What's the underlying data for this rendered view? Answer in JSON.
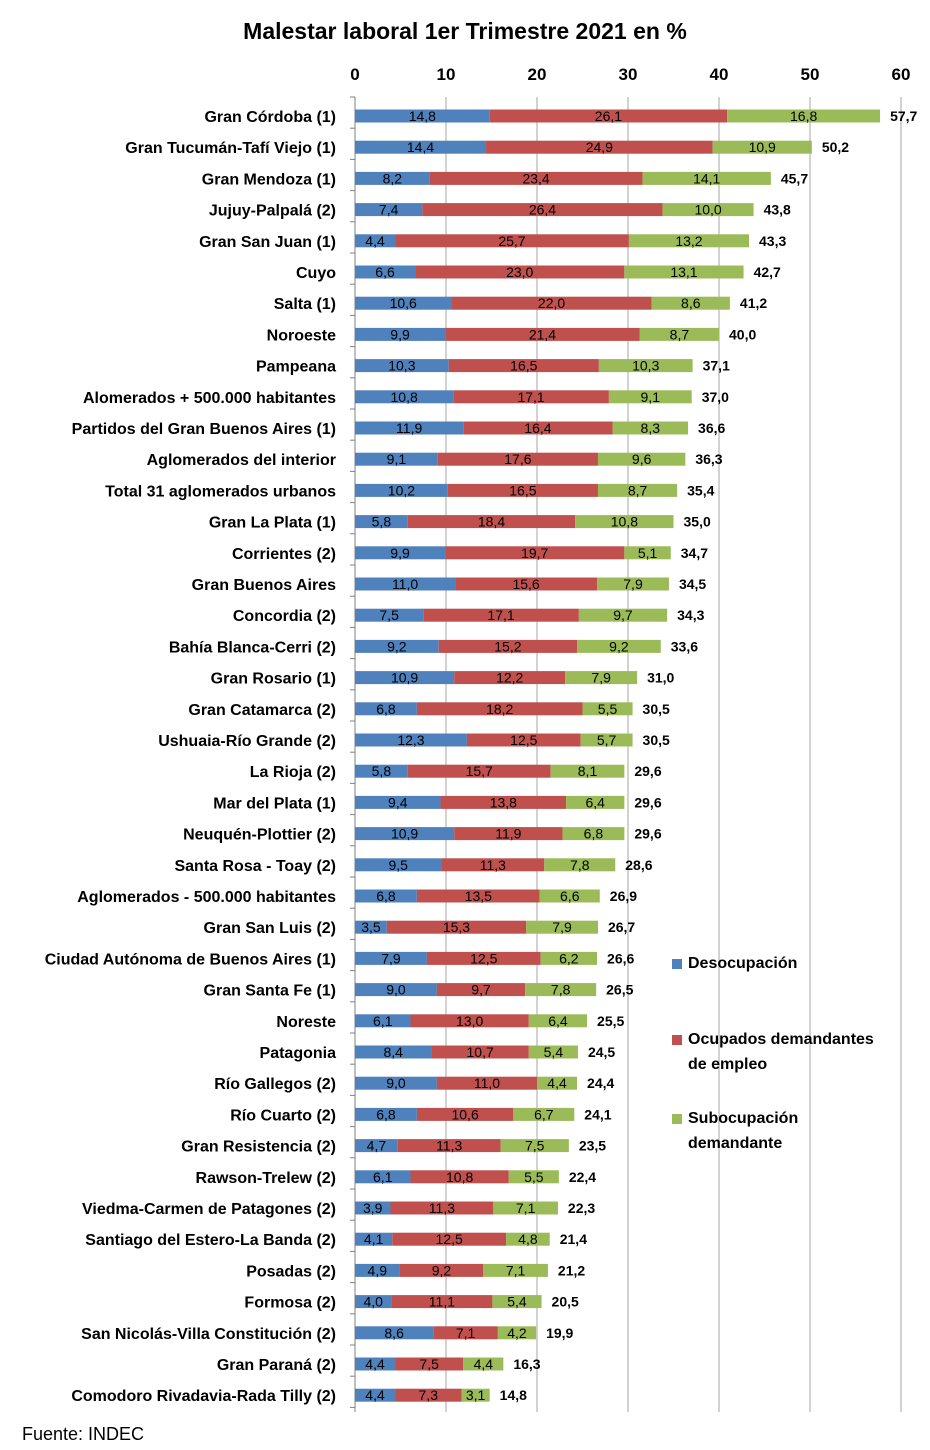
{
  "title": "Malestar laboral 1er Trimestre 2021 en %",
  "source": "Fuente: INDEC",
  "colors": {
    "desocupacion": "#4f81bd",
    "ocupados": "#c0504d",
    "subocupacion": "#9bbb59",
    "grid": "#a6a6a6"
  },
  "chart_data": {
    "type": "bar",
    "orientation": "horizontal",
    "stacked": true,
    "xlim": [
      0,
      60
    ],
    "xticks": [
      0,
      10,
      20,
      30,
      40,
      50,
      60
    ],
    "legend_position": "right",
    "categories": [
      "Gran Córdoba (1)",
      "Gran Tucumán-Tafí Viejo (1)",
      "Gran Mendoza  (1)",
      "Jujuy-Palpalá (2)",
      "Gran San Juan  (1)",
      "Cuyo",
      "Salta (1)",
      "Noroeste",
      "Pampeana",
      "Alomerados + 500.000 habitantes",
      "Partidos del Gran Buenos Aires (1)",
      "Aglomerados del interior",
      "Total 31 aglomerados urbanos",
      "Gran La Plata  (1)",
      "Corrientes (2)",
      "Gran Buenos Aires",
      "Concordia (2)",
      "Bahía Blanca-Cerri (2)",
      "Gran Rosario  (1)",
      "Gran Catamarca (2)",
      "Ushuaia-Río Grande (2)",
      "La Rioja (2)",
      "Mar del Plata (1)",
      "Neuquén-Plottier (2)",
      "Santa Rosa - Toay (2)",
      "Aglomerados - 500.000 habitantes",
      "Gran San Luis (2)",
      "Ciudad Autónoma de Buenos Aires (1)",
      "Gran Santa Fe (1)",
      "Noreste",
      "Patagonia",
      "Río Gallegos (2)",
      "Río Cuarto (2)",
      "Gran Resistencia  (2)",
      "Rawson-Trelew (2)",
      "Viedma-Carmen de Patagones (2)",
      "Santiago del Estero-La Banda (2)",
      "Posadas  (2)",
      "Formosa  (2)",
      "San Nicolás-Villa Constitución (2)",
      "Gran Paraná (2)",
      "Comodoro Rivadavia-Rada Tilly (2)"
    ],
    "series": [
      {
        "name": "Desocupación",
        "color": "#4f81bd",
        "values": [
          "14,8",
          "14,4",
          "8,2",
          "7,4",
          "4,4",
          "6,6",
          "10,6",
          "9,9",
          "10,3",
          "10,8",
          "11,9",
          "9,1",
          "10,2",
          "5,8",
          "9,9",
          "11,0",
          "7,5",
          "9,2",
          "10,9",
          "6,8",
          "12,3",
          "5,8",
          "9,4",
          "10,9",
          "9,5",
          "6,8",
          "3,5",
          "7,9",
          "9,0",
          "6,1",
          "8,4",
          "9,0",
          "6,8",
          "4,7",
          "6,1",
          "3,9",
          "4,1",
          "4,9",
          "4,0",
          "8,6",
          "4,4",
          "4,4"
        ]
      },
      {
        "name": "Ocupados demandantes de empleo",
        "color": "#c0504d",
        "values": [
          "26,1",
          "24,9",
          "23,4",
          "26,4",
          "25,7",
          "23,0",
          "22,0",
          "21,4",
          "16,5",
          "17,1",
          "16,4",
          "17,6",
          "16,5",
          "18,4",
          "19,7",
          "15,6",
          "17,1",
          "15,2",
          "12,2",
          "18,2",
          "12,5",
          "15,7",
          "13,8",
          "11,9",
          "11,3",
          "13,5",
          "15,3",
          "12,5",
          "9,7",
          "13,0",
          "10,7",
          "11,0",
          "10,6",
          "11,3",
          "10,8",
          "11,3",
          "12,5",
          "9,2",
          "11,1",
          "7,1",
          "7,5",
          "7,3"
        ]
      },
      {
        "name": "Subocupación demandante",
        "color": "#9bbb59",
        "values": [
          "16,8",
          "10,9",
          "14,1",
          "10,0",
          "13,2",
          "13,1",
          "8,6",
          "8,7",
          "10,3",
          "9,1",
          "8,3",
          "9,6",
          "8,7",
          "10,8",
          "5,1",
          "7,9",
          "9,7",
          "9,2",
          "7,9",
          "5,5",
          "5,7",
          "8,1",
          "6,4",
          "6,8",
          "7,8",
          "6,6",
          "7,9",
          "6,2",
          "7,8",
          "6,4",
          "5,4",
          "4,4",
          "6,7",
          "7,5",
          "5,5",
          "7,1",
          "4,8",
          "7,1",
          "5,4",
          "4,2",
          "4,4",
          "3,1"
        ]
      }
    ],
    "totals": [
      "57,7",
      "50,2",
      "45,7",
      "43,8",
      "43,3",
      "42,7",
      "41,2",
      "40,0",
      "37,1",
      "37,0",
      "36,6",
      "36,3",
      "35,4",
      "35,0",
      "34,7",
      "34,5",
      "34,3",
      "33,6",
      "31,0",
      "30,5",
      "30,5",
      "29,6",
      "29,6",
      "29,6",
      "28,6",
      "26,9",
      "26,7",
      "26,6",
      "26,5",
      "25,5",
      "24,5",
      "24,4",
      "24,1",
      "23,5",
      "22,4",
      "22,3",
      "21,4",
      "21,2",
      "20,5",
      "19,9",
      "16,3",
      "14,8"
    ]
  },
  "legend": [
    {
      "label": "Desocupación"
    },
    {
      "label": "Ocupados demandantes",
      "label2": "de empleo"
    },
    {
      "label": "Subocupación",
      "label2": "demandante"
    }
  ]
}
